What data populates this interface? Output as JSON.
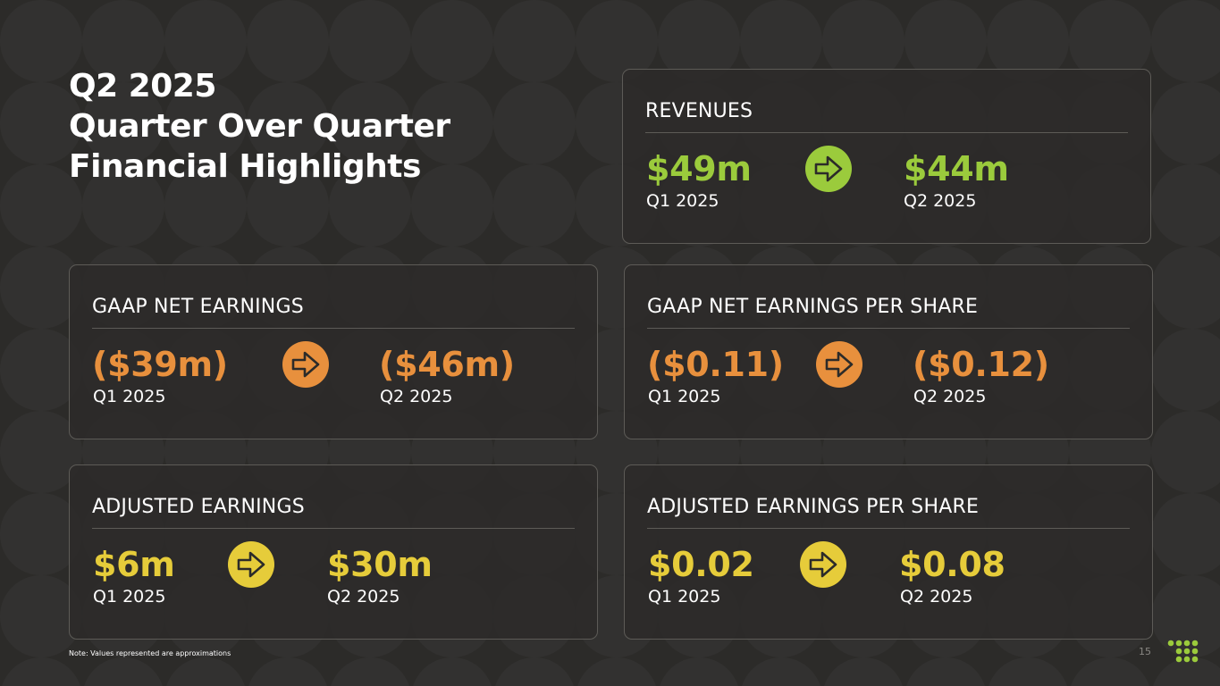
{
  "slide": {
    "title_lines": [
      "Q2 2025",
      "Quarter Over Quarter",
      "Financial Highlights"
    ],
    "footnote": "Note: Values represented are approximations",
    "page_number": "15"
  },
  "theme": {
    "background": "#2c2b29",
    "card_border": "#5d5b57",
    "green": "#9bcb3c",
    "orange": "#e8903d",
    "yellow": "#e6cc3a",
    "text": "#ffffff"
  },
  "cards": {
    "revenues": {
      "label": "REVENUES",
      "q1_value": "$49m",
      "q1_period": "Q1 2025",
      "q2_value": "$44m",
      "q2_period": "Q2 2025",
      "accent": "#9bcb3c",
      "icon": "arrow-right-icon"
    },
    "gaap_net_earnings": {
      "label": "GAAP NET EARNINGS",
      "q1_value": "($39m)",
      "q1_period": "Q1 2025",
      "q2_value": "($46m)",
      "q2_period": "Q2 2025",
      "accent": "#e8903d",
      "icon": "arrow-right-icon"
    },
    "gaap_eps": {
      "label": "GAAP NET EARNINGS PER SHARE",
      "q1_value": "($0.11)",
      "q1_period": "Q1 2025",
      "q2_value": "($0.12)",
      "q2_period": "Q2 2025",
      "accent": "#e8903d",
      "icon": "arrow-right-icon"
    },
    "adjusted_earnings": {
      "label": "ADJUSTED EARNINGS",
      "q1_value": "$6m",
      "q1_period": "Q1 2025",
      "q2_value": "$30m",
      "q2_period": "Q2 2025",
      "accent": "#e6cc3a",
      "icon": "arrow-right-icon"
    },
    "adjusted_eps": {
      "label": "ADJUSTED EARNINGS PER SHARE",
      "q1_value": "$0.02",
      "q1_period": "Q1 2025",
      "q2_value": "$0.08",
      "q2_period": "Q2 2025",
      "accent": "#e6cc3a",
      "icon": "arrow-right-icon"
    }
  },
  "logo": {
    "icon": "dot-grid-logo-icon",
    "color": "#9bcb3c"
  }
}
